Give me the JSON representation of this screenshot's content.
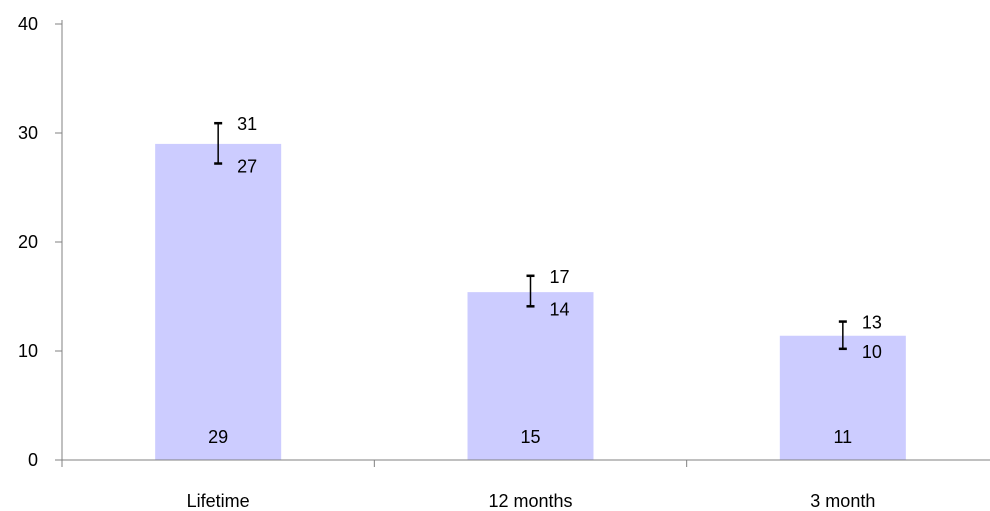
{
  "chart_data": {
    "type": "bar",
    "categories": [
      "Lifetime",
      "12 months",
      "3 month"
    ],
    "values": [
      29,
      15,
      11
    ],
    "value_labels": [
      "29",
      "15",
      "11"
    ],
    "exact_values": [
      29.0,
      15.4,
      11.4
    ],
    "error_bars": [
      {
        "low": 27.2,
        "high": 30.9,
        "low_label": "27",
        "high_label": "31"
      },
      {
        "low": 14.1,
        "high": 16.9,
        "low_label": "14",
        "high_label": "17"
      },
      {
        "low": 10.2,
        "high": 12.7,
        "low_label": "10",
        "high_label": "13"
      }
    ],
    "ylim": [
      0,
      40
    ],
    "yticks": [
      0,
      10,
      20,
      30,
      40
    ],
    "ytick_labels": [
      "0",
      "10",
      "20",
      "30",
      "40"
    ],
    "title": "",
    "xlabel": "",
    "ylabel": "",
    "grid": false,
    "legend": "none",
    "colors": {
      "bar": "#ccccff",
      "axis": "#808080",
      "error_bar": "#000000",
      "text": "#000000"
    }
  }
}
